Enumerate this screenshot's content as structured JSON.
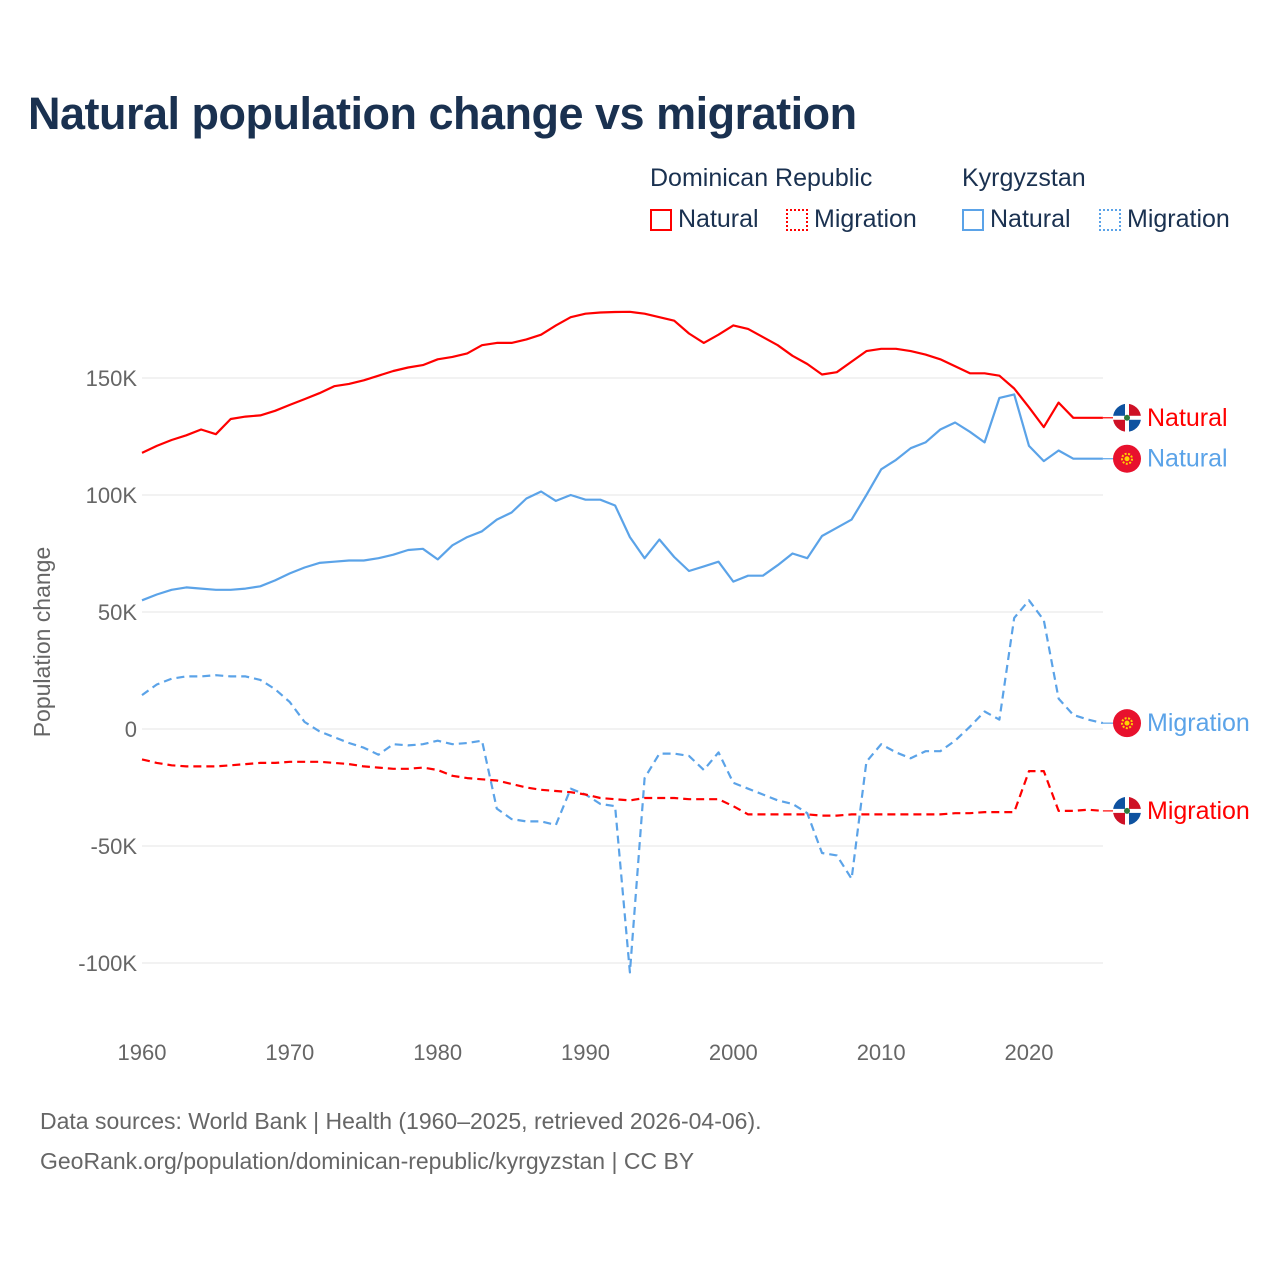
{
  "title": "Natural population change vs migration",
  "legend": {
    "groups": [
      {
        "country": "Dominican Republic",
        "items": [
          "Natural",
          "Migration"
        ],
        "color": "#ff0000"
      },
      {
        "country": "Kyrgyzstan",
        "items": [
          "Natural",
          "Migration"
        ],
        "color": "#5ba3e8"
      }
    ]
  },
  "source_lines": [
    "Data sources: World Bank | Health (1960–2025, retrieved 2026-04-06).",
    "GeoRank.org/population/dominican-republic/kyrgyzstan | CC BY"
  ],
  "chart_data": {
    "type": "line",
    "title": "Natural population change vs migration",
    "xlabel": "",
    "ylabel": "Population change",
    "xlim": [
      1960,
      2025
    ],
    "ylim": [
      -120,
      190
    ],
    "x_ticks": [
      1960,
      1970,
      1980,
      1990,
      2000,
      2010,
      2020
    ],
    "y_ticks": [
      150,
      100,
      50,
      0,
      -50,
      -100
    ],
    "y_tick_labels": [
      "150K",
      "100K",
      "50K",
      "0",
      "-50K",
      "-100K"
    ],
    "units": "thousands",
    "x_start": 1960,
    "series": [
      {
        "name": "Natural",
        "country": "Dominican Republic",
        "color": "#ff0000",
        "dash": false,
        "flag": "do",
        "values": [
          118,
          121,
          123.5,
          125.5,
          128,
          126,
          132.5,
          133.5,
          134,
          136,
          138.5,
          141,
          143.5,
          146.5,
          147.5,
          149,
          151,
          153,
          154.5,
          155.5,
          158,
          159,
          160.5,
          164,
          165,
          165,
          166.5,
          168.5,
          172.5,
          176,
          177.5,
          178,
          178.2,
          178.3,
          177.5,
          176,
          174.5,
          169,
          165,
          168.5,
          172.5,
          171,
          167.5,
          164,
          159.5,
          156,
          151.5,
          152.5,
          157,
          161.5,
          162.5,
          162.5,
          161.5,
          160,
          158,
          155,
          152,
          152,
          151,
          145.5,
          137.5,
          129,
          139.5,
          133,
          133,
          133
        ]
      },
      {
        "name": "Natural",
        "country": "Kyrgyzstan",
        "color": "#5ba3e8",
        "dash": false,
        "flag": "kg",
        "values": [
          55,
          57.5,
          59.5,
          60.5,
          60,
          59.5,
          59.5,
          60,
          61,
          63.5,
          66.5,
          69,
          71,
          71.5,
          72,
          72,
          73,
          74.5,
          76.5,
          77,
          72.5,
          78.5,
          82,
          84.5,
          89.5,
          92.5,
          98.5,
          101.5,
          97.5,
          100,
          98,
          98,
          95.5,
          82,
          73,
          81,
          73.5,
          67.5,
          69.5,
          71.5,
          63,
          65.5,
          65.5,
          70,
          75,
          73,
          82.5,
          86,
          89.5,
          100,
          111,
          115,
          120,
          122.5,
          128,
          131,
          127,
          122.5,
          141.5,
          143,
          121,
          114.5,
          119,
          115.5,
          115.5,
          115.5
        ]
      },
      {
        "name": "Migration",
        "country": "Kyrgyzstan",
        "color": "#5ba3e8",
        "dash": true,
        "flag": "kg",
        "values": [
          14.5,
          19,
          21.5,
          22.5,
          22.5,
          23,
          22.5,
          22.5,
          21,
          17,
          11.5,
          3,
          -1,
          -3.5,
          -6,
          -8,
          -11,
          -6.5,
          -7,
          -6.5,
          -5,
          -6.5,
          -6,
          -5,
          -34,
          -38.5,
          -39.5,
          -39.5,
          -41,
          -25.5,
          -28,
          -32,
          -33,
          -104,
          -21,
          -10.5,
          -10.5,
          -11.5,
          -17.5,
          -10,
          -23,
          -25.5,
          -28,
          -30.5,
          -32,
          -36,
          -53,
          -54,
          -64,
          -14,
          -6.5,
          -10,
          -12.5,
          -9.5,
          -9.5,
          -5,
          1,
          7.5,
          4,
          47.5,
          55,
          46.5,
          13,
          6,
          4,
          2.5
        ]
      },
      {
        "name": "Migration",
        "country": "Dominican Republic",
        "color": "#ff0000",
        "dash": true,
        "flag": "do",
        "values": [
          -13,
          -14.5,
          -15.5,
          -16,
          -16,
          -16,
          -15.5,
          -15,
          -14.5,
          -14.5,
          -14,
          -14,
          -14,
          -14.5,
          -15,
          -16,
          -16.5,
          -17,
          -17,
          -16.5,
          -17.5,
          -20,
          -21,
          -21.5,
          -22,
          -23.5,
          -25,
          -26,
          -26.5,
          -27,
          -28,
          -29.5,
          -30,
          -30.5,
          -29.5,
          -29.5,
          -29.5,
          -30,
          -30,
          -30,
          -33,
          -36.5,
          -36.5,
          -36.5,
          -36.5,
          -36.5,
          -37,
          -37,
          -36.5,
          -36.5,
          -36.5,
          -36.5,
          -36.5,
          -36.5,
          -36.5,
          -36,
          -36,
          -35.5,
          -35.5,
          -35.5,
          -18,
          -18,
          -35,
          -35,
          -34.5,
          -35
        ]
      }
    ]
  }
}
